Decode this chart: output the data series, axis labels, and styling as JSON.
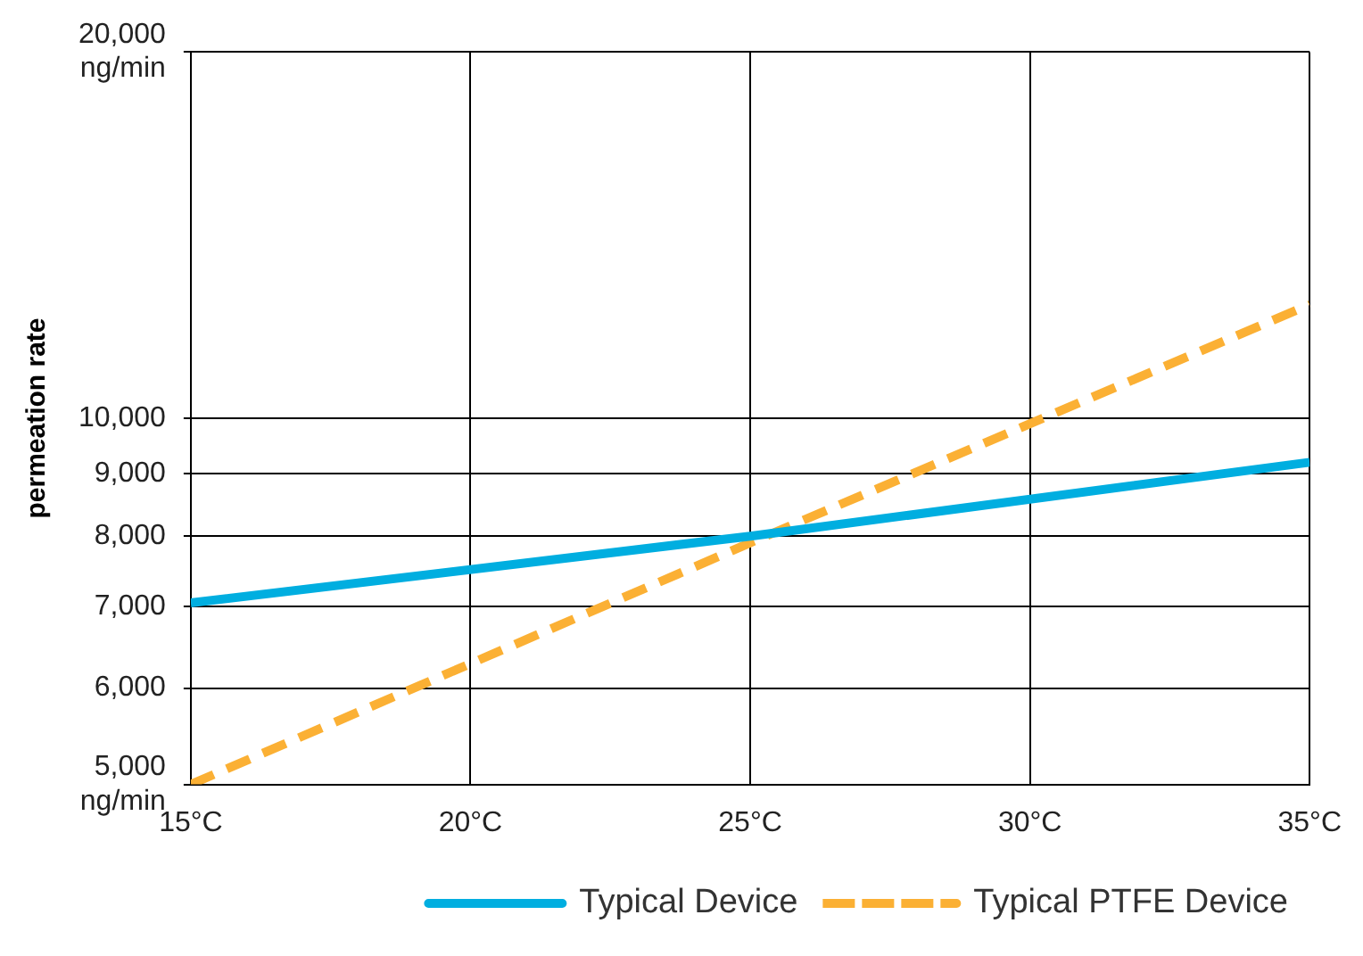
{
  "chart_data": {
    "type": "line",
    "ylabel": "permeation rate",
    "log": "y",
    "x": [
      15,
      25,
      35
    ],
    "xlim": [
      15,
      35
    ],
    "xticks": [
      {
        "value": 15,
        "label": "15°C"
      },
      {
        "value": 20,
        "label": "20°C"
      },
      {
        "value": 25,
        "label": "25°C"
      },
      {
        "value": 30,
        "label": "30°C"
      },
      {
        "value": 35,
        "label": "35°C"
      }
    ],
    "ylim": [
      5000,
      20000
    ],
    "yticks": [
      {
        "value": 5000,
        "label": "5,000\nng/min"
      },
      {
        "value": 6000,
        "label": "6,000"
      },
      {
        "value": 7000,
        "label": "7,000"
      },
      {
        "value": 8000,
        "label": "8,000"
      },
      {
        "value": 9000,
        "label": "9,000"
      },
      {
        "value": 10000,
        "label": "10,000"
      },
      {
        "value": 20000,
        "label": "20,000\nng/min"
      }
    ],
    "series": [
      {
        "name": "Typical Device",
        "color": "#00aee0",
        "values": [
          7050,
          8000,
          9200
        ],
        "line_style": "solid"
      },
      {
        "name": "Typical PTFE Device",
        "color": "#fbb034",
        "values": [
          5000,
          7900,
          12400
        ],
        "line_style": "dashed"
      }
    ],
    "grid": true,
    "legend": "bottom right",
    "marker": "none"
  }
}
